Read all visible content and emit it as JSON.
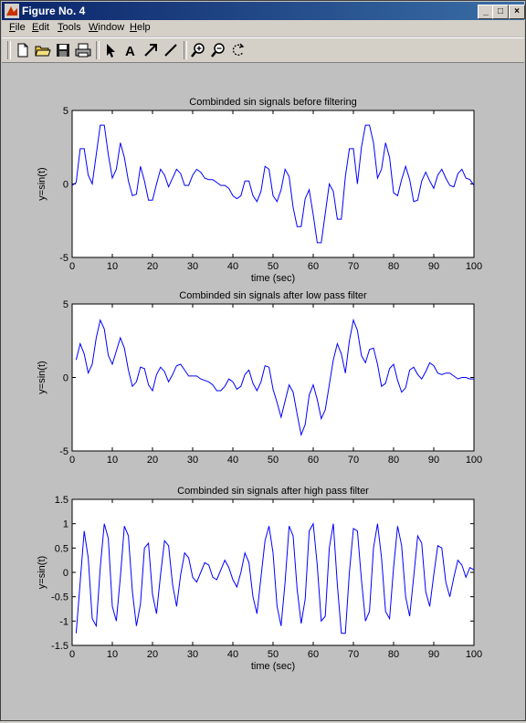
{
  "window": {
    "title": "Figure No. 4",
    "controls": [
      "_",
      "□",
      "×"
    ]
  },
  "menu": [
    "File",
    "Edit",
    "Tools",
    "Window",
    "Help"
  ],
  "toolbar": [
    "new-file-icon",
    "open-folder-icon",
    "save-icon",
    "print-icon",
    "select-arrow-icon",
    "text-tool-icon",
    "arrow-tool-icon",
    "line-tool-icon",
    "zoom-in-icon",
    "zoom-out-icon",
    "rotate-icon"
  ],
  "colors": {
    "line": "#0000ff",
    "figure_bg": "#c0c0c0",
    "axes_bg": "#ffffff",
    "titlebar": "#0a246a"
  },
  "chart_data": [
    {
      "type": "line",
      "title": "Combinded sin signals before filtering",
      "xlabel": "time (sec)",
      "ylabel": "y=sin(t)",
      "xlim": [
        0,
        100
      ],
      "ylim": [
        -5,
        5
      ],
      "xticks": [
        0,
        10,
        20,
        30,
        40,
        50,
        60,
        70,
        80,
        90,
        100
      ],
      "yticks": [
        5,
        0,
        -5
      ],
      "grid": false,
      "x": [
        0,
        1,
        2,
        3,
        4,
        5,
        6,
        7,
        8,
        9,
        10,
        11,
        12,
        13,
        14,
        15,
        16,
        17,
        18,
        19,
        20,
        21,
        22,
        23,
        24,
        25,
        26,
        27,
        28,
        29,
        30,
        31,
        32,
        33,
        34,
        35,
        36,
        37,
        38,
        39,
        40,
        41,
        42,
        43,
        44,
        45,
        46,
        47,
        48,
        49,
        50,
        51,
        52,
        53,
        54,
        55,
        56,
        57,
        58,
        59,
        60,
        61,
        62,
        63,
        64,
        65,
        66,
        67,
        68,
        69,
        70,
        71,
        72,
        73,
        74,
        75,
        76,
        77,
        78,
        79,
        80,
        81,
        82,
        83,
        84,
        85,
        86,
        87,
        88,
        89,
        90,
        91,
        92,
        93,
        94,
        95,
        96,
        97,
        98,
        99,
        100
      ],
      "y": [
        -0.1,
        0.1,
        2.4,
        2.4,
        0.6,
        0.0,
        2.0,
        4.0,
        4.0,
        2.0,
        0.4,
        1.0,
        2.8,
        1.8,
        0.2,
        -0.8,
        -0.7,
        1.2,
        0.2,
        -1.1,
        -1.1,
        0.0,
        1.0,
        0.6,
        -0.2,
        0.4,
        1.0,
        0.7,
        -0.1,
        -0.1,
        0.6,
        1.0,
        0.8,
        0.4,
        0.3,
        0.3,
        0.1,
        -0.1,
        -0.1,
        -0.3,
        -0.8,
        -1.0,
        -0.8,
        0.2,
        0.2,
        -0.8,
        -1.2,
        -0.5,
        1.2,
        1.0,
        -0.8,
        -1.2,
        -0.4,
        1.0,
        0.5,
        -1.6,
        -2.9,
        -2.9,
        -1.0,
        -0.4,
        -2.1,
        -4.0,
        -4.0,
        -2.0,
        0.0,
        -0.5,
        -2.4,
        -2.4,
        0.5,
        2.4,
        2.4,
        0.0,
        2.5,
        4.0,
        4.0,
        2.8,
        0.4,
        1.0,
        2.8,
        1.8,
        -0.6,
        -0.8,
        0.3,
        1.2,
        0.3,
        -1.2,
        -1.1,
        0.2,
        0.8,
        0.2,
        -0.3,
        0.6,
        1.0,
        0.4,
        -0.1,
        -0.2,
        0.7,
        1.0,
        0.4,
        0.3,
        -0.1
      ]
    },
    {
      "type": "line",
      "title": "Combinded sin signals after low pass filter",
      "xlabel": "",
      "ylabel": "y=sin(t)",
      "xlim": [
        0,
        100
      ],
      "ylim": [
        -5,
        5
      ],
      "xticks": [
        0,
        10,
        20,
        30,
        40,
        50,
        60,
        70,
        80,
        90,
        100
      ],
      "yticks": [
        5,
        0,
        -5
      ],
      "grid": false,
      "x": [
        1,
        2,
        3,
        4,
        5,
        6,
        7,
        8,
        9,
        10,
        11,
        12,
        13,
        14,
        15,
        16,
        17,
        18,
        19,
        20,
        21,
        22,
        23,
        24,
        25,
        26,
        27,
        28,
        29,
        30,
        31,
        32,
        33,
        34,
        35,
        36,
        37,
        38,
        39,
        40,
        41,
        42,
        43,
        44,
        45,
        46,
        47,
        48,
        49,
        50,
        51,
        52,
        53,
        54,
        55,
        56,
        57,
        58,
        59,
        60,
        61,
        62,
        63,
        64,
        65,
        66,
        67,
        68,
        69,
        70,
        71,
        72,
        73,
        74,
        75,
        76,
        77,
        78,
        79,
        80,
        81,
        82,
        83,
        84,
        85,
        86,
        87,
        88,
        89,
        90,
        91,
        92,
        93,
        94,
        95,
        96,
        97,
        98,
        99,
        100
      ],
      "y": [
        1.2,
        2.3,
        1.6,
        0.3,
        0.9,
        2.7,
        3.9,
        3.3,
        1.5,
        0.9,
        1.8,
        2.7,
        2.0,
        0.5,
        -0.6,
        -0.3,
        0.7,
        0.6,
        -0.5,
        -0.9,
        0.2,
        0.7,
        0.4,
        -0.3,
        0.2,
        0.8,
        0.9,
        0.5,
        0.1,
        0.1,
        0.1,
        -0.1,
        -0.2,
        -0.3,
        -0.5,
        -0.9,
        -0.9,
        -0.6,
        -0.1,
        -0.3,
        -0.8,
        -0.6,
        0.2,
        0.5,
        -0.4,
        -0.9,
        -0.3,
        0.8,
        0.7,
        -0.8,
        -1.7,
        -2.7,
        -1.6,
        -0.5,
        -1.0,
        -2.5,
        -3.9,
        -3.2,
        -1.2,
        -0.5,
        -1.5,
        -2.8,
        -2.2,
        -0.5,
        1.2,
        2.3,
        1.6,
        0.3,
        2.5,
        3.9,
        3.2,
        1.5,
        1.0,
        1.9,
        2.0,
        0.9,
        -0.6,
        -0.4,
        0.6,
        0.9,
        -0.2,
        -1.0,
        -0.7,
        0.5,
        0.7,
        0.2,
        -0.1,
        0.4,
        1.0,
        0.8,
        0.3,
        0.2,
        0.3,
        0.3,
        0.1,
        -0.1,
        0.0,
        0.0,
        -0.1,
        -0.1
      ]
    },
    {
      "type": "line",
      "title": "Combinded sin signals after high pass filter",
      "xlabel": "time (sec)",
      "ylabel": "y=sin(t)",
      "xlim": [
        0,
        100
      ],
      "ylim": [
        -1.5,
        1.5
      ],
      "xticks": [
        0,
        10,
        20,
        30,
        40,
        50,
        60,
        70,
        80,
        90,
        100
      ],
      "yticks": [
        1.5,
        1,
        0.5,
        0,
        -0.5,
        -1,
        -1.5
      ],
      "grid": false,
      "x": [
        1,
        2,
        3,
        4,
        5,
        6,
        7,
        8,
        9,
        10,
        11,
        12,
        13,
        14,
        15,
        16,
        17,
        18,
        19,
        20,
        21,
        22,
        23,
        24,
        25,
        26,
        27,
        28,
        29,
        30,
        31,
        32,
        33,
        34,
        35,
        36,
        37,
        38,
        39,
        40,
        41,
        42,
        43,
        44,
        45,
        46,
        47,
        48,
        49,
        50,
        51,
        52,
        53,
        54,
        55,
        56,
        57,
        58,
        59,
        60,
        61,
        62,
        63,
        64,
        65,
        66,
        67,
        68,
        69,
        70,
        71,
        72,
        73,
        74,
        75,
        76,
        77,
        78,
        79,
        80,
        81,
        82,
        83,
        84,
        85,
        86,
        87,
        88,
        89,
        90,
        91,
        92,
        93,
        94,
        95,
        96,
        97,
        98,
        99,
        100
      ],
      "y": [
        -1.25,
        -0.2,
        0.85,
        0.3,
        -0.95,
        -1.1,
        0.1,
        1.0,
        0.7,
        -0.7,
        -1.0,
        -0.1,
        0.95,
        0.75,
        -0.4,
        -1.1,
        -0.65,
        0.5,
        0.6,
        -0.45,
        -0.85,
        -0.05,
        0.65,
        0.55,
        -0.25,
        -0.7,
        -0.05,
        0.4,
        0.3,
        -0.1,
        -0.2,
        0.0,
        0.2,
        0.15,
        -0.1,
        -0.15,
        0.05,
        0.25,
        0.1,
        -0.15,
        -0.3,
        0.0,
        0.4,
        0.2,
        -0.5,
        -0.85,
        -0.1,
        0.65,
        0.95,
        0.4,
        -0.7,
        -1.1,
        -0.2,
        0.95,
        0.75,
        -0.35,
        -1.05,
        -0.55,
        0.85,
        1.0,
        0.15,
        -1.0,
        -0.9,
        0.5,
        1.0,
        -0.25,
        -1.25,
        -1.25,
        0.0,
        0.9,
        0.85,
        -0.15,
        -1.0,
        -0.8,
        0.5,
        1.0,
        0.3,
        -0.8,
        -0.95,
        0.1,
        0.95,
        0.55,
        -0.5,
        -0.9,
        -0.1,
        0.75,
        0.6,
        -0.4,
        -0.7,
        -0.05,
        0.55,
        0.5,
        -0.2,
        -0.5,
        -0.1,
        0.25,
        0.15,
        -0.1,
        0.1,
        0.05
      ]
    }
  ]
}
